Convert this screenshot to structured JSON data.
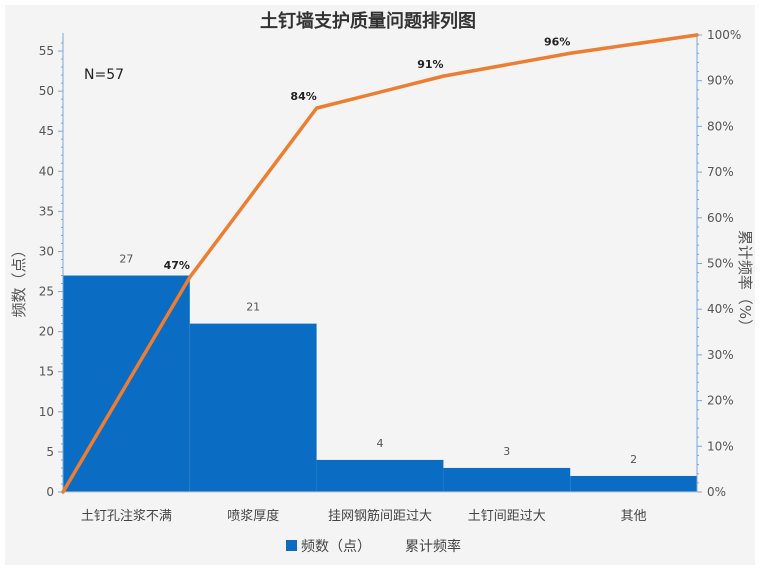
{
  "chart_data": {
    "type": "bar",
    "title": "土钉墙支护质量问题排列图",
    "annotation": "N=57",
    "categories": [
      "土钉孔注浆不满",
      "喷浆厚度",
      "挂网钢筋间距过大",
      "土钉间距过大",
      "其他"
    ],
    "series": [
      {
        "name": "频数（点）",
        "type": "bar",
        "values": [
          27,
          21,
          4,
          3,
          2
        ],
        "color": "#0a6cc2"
      },
      {
        "name": "累计频率",
        "type": "line",
        "points": [
          [
            0,
            0
          ],
          [
            1,
            47
          ],
          [
            2,
            84
          ],
          [
            3,
            91
          ],
          [
            4,
            96
          ],
          [
            5,
            100
          ]
        ],
        "labels": [
          "47%",
          "84%",
          "91%",
          "96%"
        ],
        "color": "#ed7d31"
      }
    ],
    "ylabel": "频数（点）",
    "y2label": "累计频率（%）",
    "ylim": [
      0,
      57
    ],
    "y2lim": [
      0,
      100
    ],
    "yticks": [
      0,
      5,
      10,
      15,
      20,
      25,
      30,
      35,
      40,
      45,
      50,
      55
    ],
    "y2ticks": [
      "0%",
      "10%",
      "20%",
      "30%",
      "40%",
      "50%",
      "60%",
      "70%",
      "80%",
      "90%",
      "100%"
    ],
    "legend_position": "bottom",
    "grid": false
  }
}
